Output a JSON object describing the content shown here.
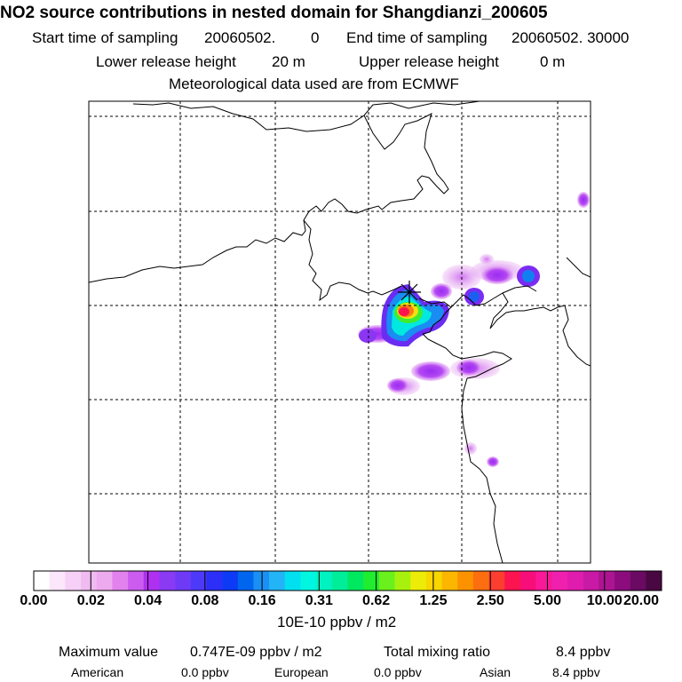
{
  "header": {
    "title": "NO2 source contributions in nested domain for Shangdianzi_200605",
    "start_label": "Start time of sampling",
    "start_value": "20060502.",
    "start_value2": "0",
    "end_label": "End time of sampling",
    "end_value": "20060502. 30000",
    "lower_label": "Lower release height",
    "lower_value": "20 m",
    "upper_label": "Upper release height",
    "upper_value": "0 m",
    "met_line": "Meteorological data used are from ECMWF"
  },
  "colorbar": {
    "tick_labels": [
      "0.00",
      "0.02",
      "0.04",
      "0.08",
      "0.16",
      "0.31",
      "0.62",
      "1.25",
      "2.50",
      "5.00",
      "10.00",
      "20.00"
    ],
    "unit": "10E-10 ppbv / m2",
    "colors": [
      "#ffffff",
      "#fbe6fb",
      "#f6d0f6",
      "#f0bbf0",
      "#eeaaee",
      "#e282ee",
      "#cc5cf0",
      "#b030f2",
      "#8a3af2",
      "#6f3af6",
      "#4d3af8",
      "#2c2ff8",
      "#0d3af4",
      "#0066ee",
      "#1a90f4",
      "#22b4f6",
      "#00e0f0",
      "#00f6e0",
      "#00f2c0",
      "#00ee9a",
      "#00e860",
      "#20ec30",
      "#6af01c",
      "#a8f00e",
      "#ecec08",
      "#f8d600",
      "#fcb600",
      "#fc9200",
      "#fc6e10",
      "#fc3e30",
      "#fc1450",
      "#f80e7a",
      "#f81898",
      "#f020ae",
      "#e01cae",
      "#c81aa4",
      "#ac1492",
      "#8c0c7e",
      "#6a0a62",
      "#4a0842"
    ]
  },
  "map_features": {
    "receptor_marker": "receptor-star-icon",
    "grid_style": "dashed"
  },
  "footer": {
    "max_label": "Maximum value",
    "max_value": "0.747E-09 ppbv / m2",
    "total_label": "Total mixing ratio",
    "total_value": "8.4 ppbv",
    "american_label": "American",
    "american_value": "0.0 ppbv",
    "european_label": "European",
    "european_value": "0.0 ppbv",
    "asian_label": "Asian",
    "asian_value": "8.4 ppbv"
  }
}
